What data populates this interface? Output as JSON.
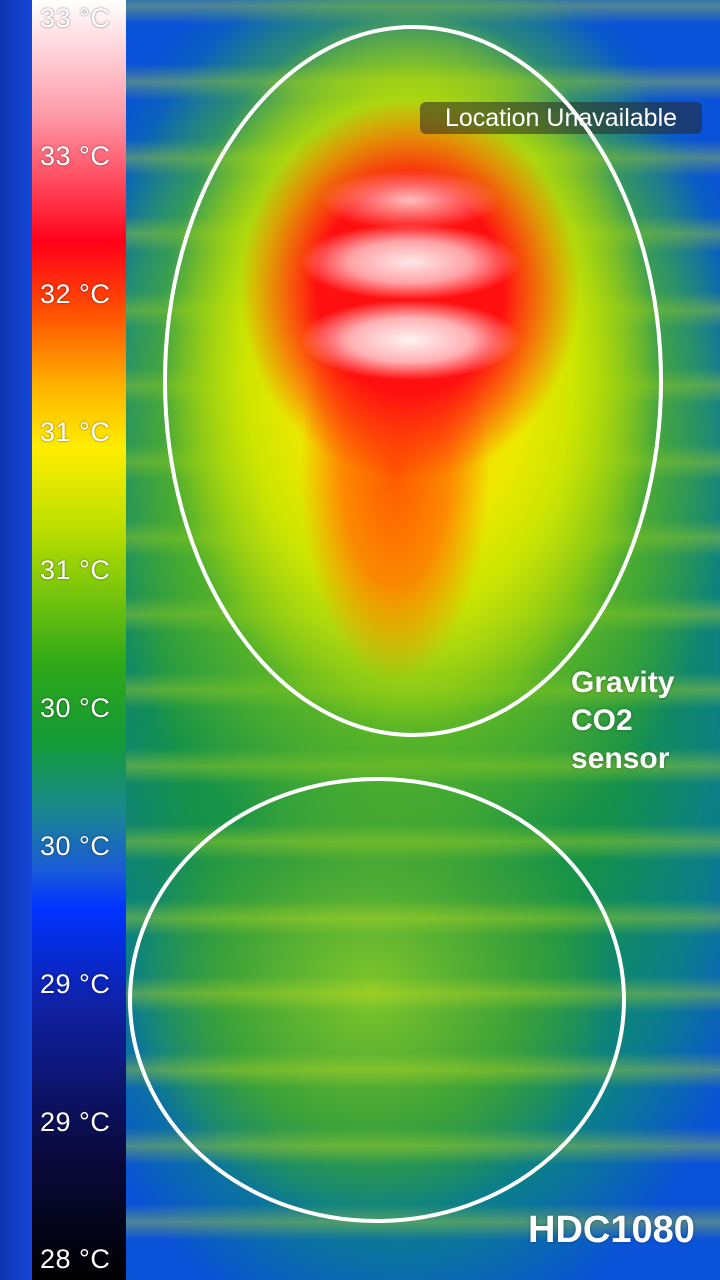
{
  "thermal_view": {
    "palette": "rainbow",
    "scale": [
      "33 °C",
      "33 °C",
      "32 °C",
      "31 °C",
      "31 °C",
      "30 °C",
      "30 °C",
      "29 °C",
      "29 °C",
      "28 °C"
    ]
  },
  "status": {
    "location": "Location Unavailable"
  },
  "annotations": {
    "sensor_top_line1": "Gravity",
    "sensor_top_line2": "CO2",
    "sensor_top_line3": "sensor",
    "sensor_bottom": "HDC1080"
  }
}
